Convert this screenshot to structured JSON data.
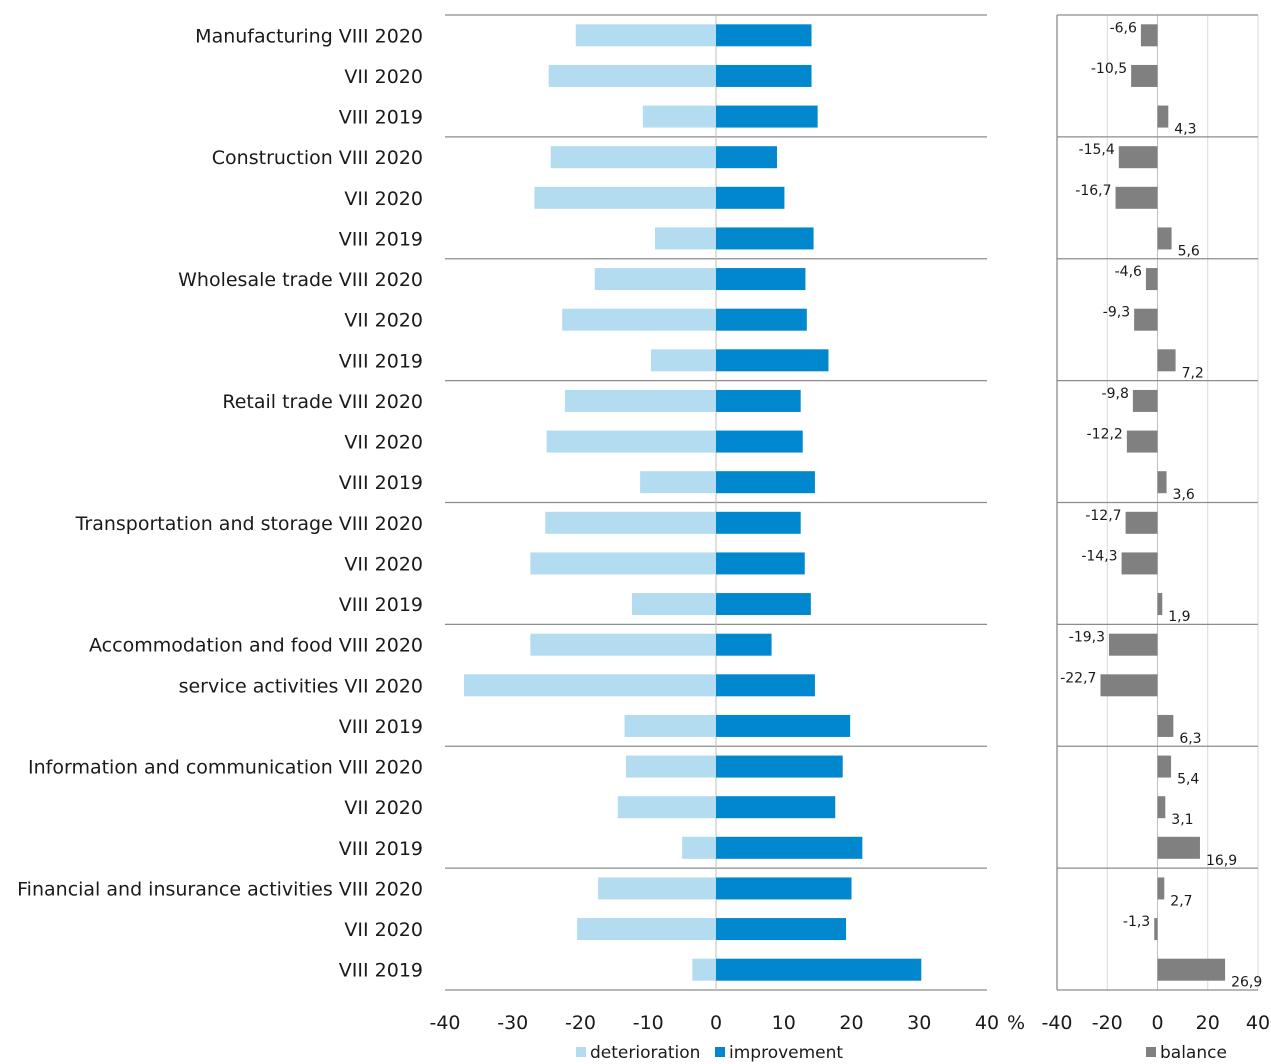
{
  "chart_data": [
    {
      "type": "bar",
      "orientation": "horizontal",
      "categories": [
        "Manufacturing VIII 2020",
        "VII 2020",
        "VIII 2019",
        "Construction VIII 2020",
        "VII 2020",
        "VIII 2019",
        "Wholesale trade VIII 2020",
        "VII 2020",
        "VIII 2019",
        "Retail trade VIII 2020",
        "VII 2020",
        "VIII 2019",
        "Transportation and storage VIII 2020",
        "VII 2020",
        "VIII 2019",
        "Accommodation and food VIII 2020",
        "service activities  VII 2020",
        "VIII 2019",
        "Information and communication VIII 2020",
        "VII 2020",
        "VIII 2019",
        "Financial and insurance activities VIII 2020",
        "VII 2020",
        "VIII 2019"
      ],
      "series": [
        {
          "name": "deterioration",
          "color": "#b3dcf0",
          "values": [
            -20.7,
            -24.7,
            -10.8,
            -24.4,
            -26.8,
            -9.0,
            -17.9,
            -22.7,
            -9.6,
            -22.3,
            -25.0,
            -11.2,
            -25.2,
            -27.4,
            -12.4,
            -27.4,
            -37.2,
            -13.5,
            -13.3,
            -14.5,
            -5.0,
            -17.4,
            -20.5,
            -3.5
          ]
        },
        {
          "name": "improvement",
          "color": "#0087cd",
          "values": [
            14.1,
            14.1,
            15.0,
            9.0,
            10.1,
            14.4,
            13.2,
            13.4,
            16.6,
            12.5,
            12.8,
            14.6,
            12.5,
            13.1,
            14.0,
            8.2,
            14.6,
            19.8,
            18.7,
            17.6,
            21.6,
            20.0,
            19.2,
            30.3
          ]
        }
      ],
      "x_ticks": [
        "-40",
        "-30",
        "-20",
        "-10",
        "0",
        "10",
        "20",
        "30",
        "40"
      ],
      "xlim": [
        -40,
        40
      ],
      "unit_label": "%",
      "grid": false
    },
    {
      "type": "bar",
      "orientation": "horizontal",
      "series": [
        {
          "name": "balance",
          "color": "#808080",
          "values": [
            -6.6,
            -10.5,
            4.3,
            -15.4,
            -16.7,
            5.6,
            -4.6,
            -9.3,
            7.2,
            -9.8,
            -12.2,
            3.6,
            -12.7,
            -14.3,
            1.9,
            -19.3,
            -22.7,
            6.3,
            5.4,
            3.1,
            16.9,
            2.7,
            -1.3,
            26.9
          ],
          "labels": [
            "-6,6",
            "-10,5",
            "4,3",
            "-15,4",
            "-16,7",
            "5,6",
            "-4,6",
            "-9,3",
            "7,2",
            "-9,8",
            "-12,2",
            "3,6",
            "-12,7",
            "-14,3",
            "1,9",
            "-19,3",
            "-22,7",
            "6,3",
            "5,4",
            "3,1",
            "16,9",
            "2,7",
            "-1,3",
            "26,9"
          ]
        }
      ],
      "x_ticks": [
        "-40",
        "-20",
        "0",
        "20",
        "40"
      ],
      "xlim": [
        -40,
        40
      ],
      "grid": true
    }
  ]
}
